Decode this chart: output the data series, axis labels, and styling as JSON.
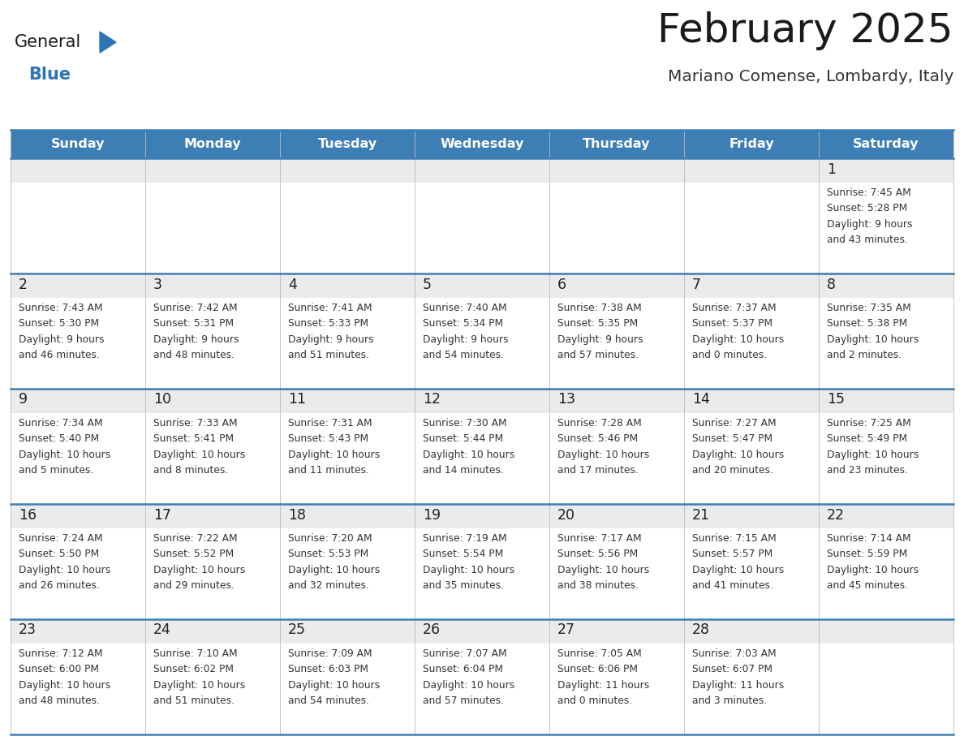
{
  "title": "February 2025",
  "subtitle": "Mariano Comense, Lombardy, Italy",
  "header_color": "#3D7EB5",
  "header_text_color": "#FFFFFF",
  "cell_top_bg": "#EEEEEE",
  "cell_body_bg": "#FFFFFF",
  "border_color": "#3D7EB5",
  "thin_border_color": "#CCCCCC",
  "day_names": [
    "Sunday",
    "Monday",
    "Tuesday",
    "Wednesday",
    "Thursday",
    "Friday",
    "Saturday"
  ],
  "days": [
    {
      "day": 1,
      "col": 6,
      "row": 0,
      "sunrise": "7:45 AM",
      "sunset": "5:28 PM",
      "daylight1": "9 hours",
      "daylight2": "and 43 minutes."
    },
    {
      "day": 2,
      "col": 0,
      "row": 1,
      "sunrise": "7:43 AM",
      "sunset": "5:30 PM",
      "daylight1": "9 hours",
      "daylight2": "and 46 minutes."
    },
    {
      "day": 3,
      "col": 1,
      "row": 1,
      "sunrise": "7:42 AM",
      "sunset": "5:31 PM",
      "daylight1": "9 hours",
      "daylight2": "and 48 minutes."
    },
    {
      "day": 4,
      "col": 2,
      "row": 1,
      "sunrise": "7:41 AM",
      "sunset": "5:33 PM",
      "daylight1": "9 hours",
      "daylight2": "and 51 minutes."
    },
    {
      "day": 5,
      "col": 3,
      "row": 1,
      "sunrise": "7:40 AM",
      "sunset": "5:34 PM",
      "daylight1": "9 hours",
      "daylight2": "and 54 minutes."
    },
    {
      "day": 6,
      "col": 4,
      "row": 1,
      "sunrise": "7:38 AM",
      "sunset": "5:35 PM",
      "daylight1": "9 hours",
      "daylight2": "and 57 minutes."
    },
    {
      "day": 7,
      "col": 5,
      "row": 1,
      "sunrise": "7:37 AM",
      "sunset": "5:37 PM",
      "daylight1": "10 hours",
      "daylight2": "and 0 minutes."
    },
    {
      "day": 8,
      "col": 6,
      "row": 1,
      "sunrise": "7:35 AM",
      "sunset": "5:38 PM",
      "daylight1": "10 hours",
      "daylight2": "and 2 minutes."
    },
    {
      "day": 9,
      "col": 0,
      "row": 2,
      "sunrise": "7:34 AM",
      "sunset": "5:40 PM",
      "daylight1": "10 hours",
      "daylight2": "and 5 minutes."
    },
    {
      "day": 10,
      "col": 1,
      "row": 2,
      "sunrise": "7:33 AM",
      "sunset": "5:41 PM",
      "daylight1": "10 hours",
      "daylight2": "and 8 minutes."
    },
    {
      "day": 11,
      "col": 2,
      "row": 2,
      "sunrise": "7:31 AM",
      "sunset": "5:43 PM",
      "daylight1": "10 hours",
      "daylight2": "and 11 minutes."
    },
    {
      "day": 12,
      "col": 3,
      "row": 2,
      "sunrise": "7:30 AM",
      "sunset": "5:44 PM",
      "daylight1": "10 hours",
      "daylight2": "and 14 minutes."
    },
    {
      "day": 13,
      "col": 4,
      "row": 2,
      "sunrise": "7:28 AM",
      "sunset": "5:46 PM",
      "daylight1": "10 hours",
      "daylight2": "and 17 minutes."
    },
    {
      "day": 14,
      "col": 5,
      "row": 2,
      "sunrise": "7:27 AM",
      "sunset": "5:47 PM",
      "daylight1": "10 hours",
      "daylight2": "and 20 minutes."
    },
    {
      "day": 15,
      "col": 6,
      "row": 2,
      "sunrise": "7:25 AM",
      "sunset": "5:49 PM",
      "daylight1": "10 hours",
      "daylight2": "and 23 minutes."
    },
    {
      "day": 16,
      "col": 0,
      "row": 3,
      "sunrise": "7:24 AM",
      "sunset": "5:50 PM",
      "daylight1": "10 hours",
      "daylight2": "and 26 minutes."
    },
    {
      "day": 17,
      "col": 1,
      "row": 3,
      "sunrise": "7:22 AM",
      "sunset": "5:52 PM",
      "daylight1": "10 hours",
      "daylight2": "and 29 minutes."
    },
    {
      "day": 18,
      "col": 2,
      "row": 3,
      "sunrise": "7:20 AM",
      "sunset": "5:53 PM",
      "daylight1": "10 hours",
      "daylight2": "and 32 minutes."
    },
    {
      "day": 19,
      "col": 3,
      "row": 3,
      "sunrise": "7:19 AM",
      "sunset": "5:54 PM",
      "daylight1": "10 hours",
      "daylight2": "and 35 minutes."
    },
    {
      "day": 20,
      "col": 4,
      "row": 3,
      "sunrise": "7:17 AM",
      "sunset": "5:56 PM",
      "daylight1": "10 hours",
      "daylight2": "and 38 minutes."
    },
    {
      "day": 21,
      "col": 5,
      "row": 3,
      "sunrise": "7:15 AM",
      "sunset": "5:57 PM",
      "daylight1": "10 hours",
      "daylight2": "and 41 minutes."
    },
    {
      "day": 22,
      "col": 6,
      "row": 3,
      "sunrise": "7:14 AM",
      "sunset": "5:59 PM",
      "daylight1": "10 hours",
      "daylight2": "and 45 minutes."
    },
    {
      "day": 23,
      "col": 0,
      "row": 4,
      "sunrise": "7:12 AM",
      "sunset": "6:00 PM",
      "daylight1": "10 hours",
      "daylight2": "and 48 minutes."
    },
    {
      "day": 24,
      "col": 1,
      "row": 4,
      "sunrise": "7:10 AM",
      "sunset": "6:02 PM",
      "daylight1": "10 hours",
      "daylight2": "and 51 minutes."
    },
    {
      "day": 25,
      "col": 2,
      "row": 4,
      "sunrise": "7:09 AM",
      "sunset": "6:03 PM",
      "daylight1": "10 hours",
      "daylight2": "and 54 minutes."
    },
    {
      "day": 26,
      "col": 3,
      "row": 4,
      "sunrise": "7:07 AM",
      "sunset": "6:04 PM",
      "daylight1": "10 hours",
      "daylight2": "and 57 minutes."
    },
    {
      "day": 27,
      "col": 4,
      "row": 4,
      "sunrise": "7:05 AM",
      "sunset": "6:06 PM",
      "daylight1": "11 hours",
      "daylight2": "and 0 minutes."
    },
    {
      "day": 28,
      "col": 5,
      "row": 4,
      "sunrise": "7:03 AM",
      "sunset": "6:07 PM",
      "daylight1": "11 hours",
      "daylight2": "and 3 minutes."
    }
  ],
  "num_rows": 5,
  "logo_text_general": "General",
  "logo_text_blue": "Blue",
  "logo_color_general": "#1A1A1A",
  "logo_color_blue": "#2E75B6",
  "logo_triangle_color": "#2E75B6"
}
